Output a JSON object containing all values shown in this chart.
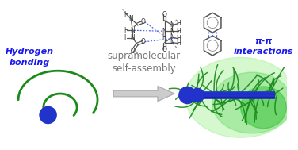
{
  "bg_color": "#ffffff",
  "green_color": "#1a8a1a",
  "blue_color": "#1a1aee",
  "blue_sphere": "#2233cc",
  "arrow_fill": "#cccccc",
  "arrow_edge": "#aaaaaa",
  "arrow_text": "supramolecular\nself-assembly",
  "arrow_text_color": "#777777",
  "label_hbond": "Hydrogen\nbonding",
  "label_pi": "π-π\ninteractions",
  "label_color": "#1a1aee",
  "label_fontsize": 8.0,
  "arrow_fontsize": 8.5
}
